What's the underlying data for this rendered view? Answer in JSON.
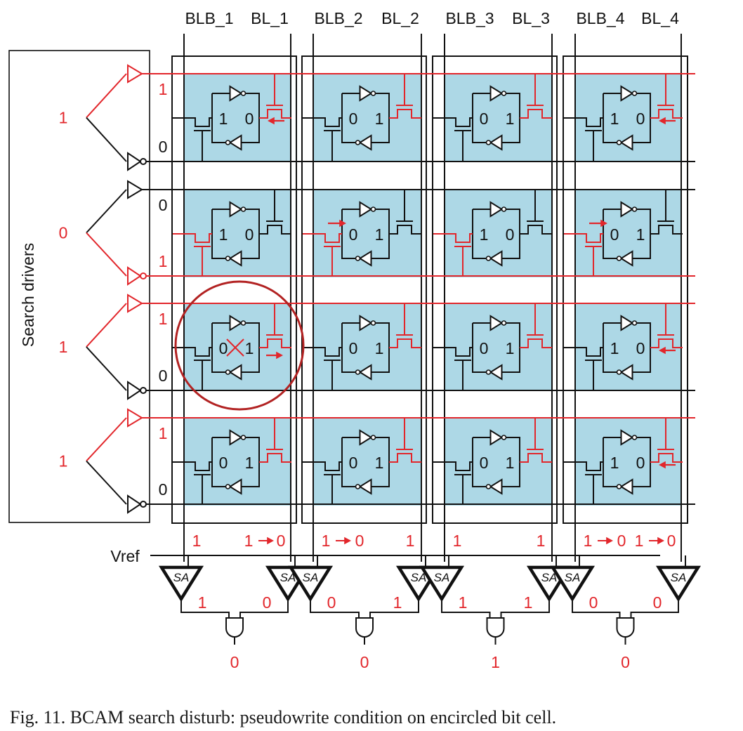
{
  "diagram": {
    "columns": [
      {
        "blb": "BLB_1",
        "bl": "BL_1",
        "mismatch": true,
        "blb_value": "1",
        "bl_value": "1",
        "bl_arrow_to": "0",
        "blb_arrow_to": "",
        "sa_out": [
          "1",
          "0"
        ],
        "match_out": "0"
      },
      {
        "blb": "BLB_2",
        "bl": "BL_2",
        "mismatch": true,
        "blb_value": "1",
        "bl_value": "1",
        "bl_arrow_to": "",
        "blb_arrow_to": "0",
        "sa_out": [
          "0",
          "1"
        ],
        "match_out": "0"
      },
      {
        "blb": "BLB_3",
        "bl": "BL_3",
        "mismatch": false,
        "blb_value": "1",
        "bl_value": "1",
        "bl_arrow_to": "",
        "blb_arrow_to": "",
        "sa_out": [
          "1",
          "1"
        ],
        "match_out": "1"
      },
      {
        "blb": "BLB_4",
        "bl": "BL_4",
        "mismatch": true,
        "blb_value": "1",
        "bl_value": "1",
        "bl_arrow_to": "0",
        "blb_arrow_to": "0",
        "sa_out": [
          "0",
          "0"
        ],
        "match_out": "0"
      }
    ],
    "rows": [
      {
        "search_bit": "1",
        "sl_true": "1",
        "sl_comp": "0",
        "cells": [
          [
            "1",
            "0"
          ],
          [
            "0",
            "1"
          ],
          [
            "0",
            "1"
          ],
          [
            "1",
            "0"
          ]
        ],
        "active": "right"
      },
      {
        "search_bit": "0",
        "sl_true": "0",
        "sl_comp": "1",
        "cells": [
          [
            "1",
            "0"
          ],
          [
            "0",
            "1"
          ],
          [
            "1",
            "0"
          ],
          [
            "0",
            "1"
          ]
        ],
        "active": "left"
      },
      {
        "search_bit": "1",
        "sl_true": "1",
        "sl_comp": "0",
        "cells": [
          [
            "0",
            "1"
          ],
          [
            "0",
            "1"
          ],
          [
            "0",
            "1"
          ],
          [
            "1",
            "0"
          ]
        ],
        "active": "right"
      },
      {
        "search_bit": "1",
        "sl_true": "1",
        "sl_comp": "0",
        "cells": [
          [
            "0",
            "1"
          ],
          [
            "0",
            "1"
          ],
          [
            "0",
            "1"
          ],
          [
            "1",
            "0"
          ]
        ],
        "active": "right"
      }
    ],
    "arrows": {
      "row1": [
        true,
        false,
        false,
        true
      ],
      "row2": [
        false,
        true,
        false,
        true
      ],
      "row3": [
        true,
        false,
        false,
        true
      ],
      "row4": [
        false,
        false,
        false,
        true
      ]
    },
    "search_drivers_label": "Search drivers",
    "vref_label": "Vref",
    "sa_label": "SA",
    "encircled_cell": {
      "row": 3,
      "col": 1
    },
    "colors": {
      "cell_fill": "#add8e6",
      "red": "#e2262b",
      "black": "#111111",
      "circle": "#b22222"
    }
  },
  "caption": "Fig. 11.  BCAM search disturb: pseudowrite condition on encircled bit cell."
}
